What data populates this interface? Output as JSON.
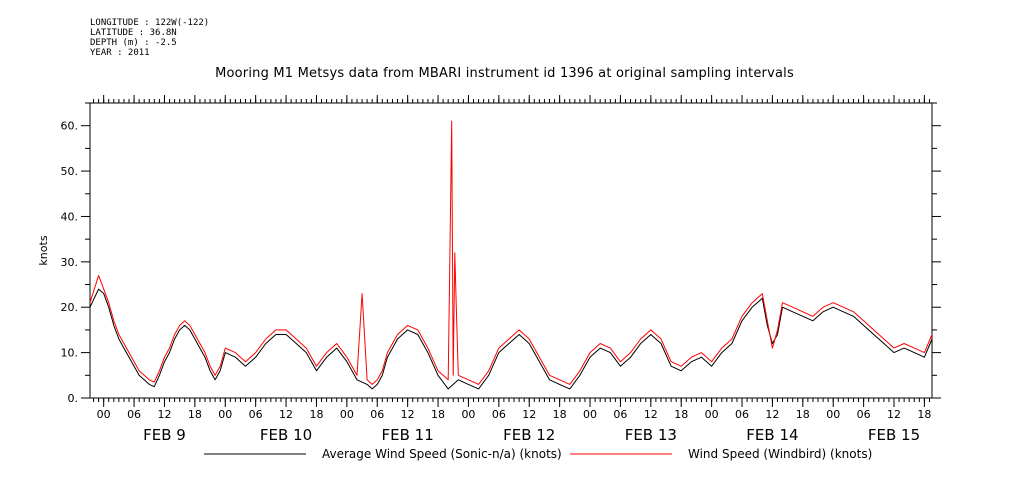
{
  "meta": {
    "longitude": "LONGITUDE : 122W(-122)",
    "latitude": "LATITUDE : 36.8N",
    "depth": "DEPTH (m) : -2.5",
    "year": "YEAR : 2011"
  },
  "chart_data": {
    "type": "line",
    "title": "Mooring M1 Metsys data from MBARI instrument id 1396 at original sampling intervals",
    "ylabel": "knots",
    "xlabel": "",
    "ylim": [
      0,
      65
    ],
    "yticks": [
      0,
      10,
      20,
      30,
      40,
      50,
      60
    ],
    "ytick_labels": [
      "0.",
      "10.",
      "20.",
      "30.",
      "40.",
      "50.",
      "60."
    ],
    "xlim": [
      -2.7,
      163.5
    ],
    "x_unit": "hours from FEB 9 00:00 (2011)",
    "hour_ticks": [
      "00",
      "06",
      "12",
      "18",
      "00",
      "06",
      "12",
      "18",
      "00",
      "06",
      "12",
      "18",
      "00",
      "06",
      "12",
      "18",
      "00",
      "06",
      "12",
      "18",
      "00",
      "06",
      "12",
      "18",
      "00",
      "06",
      "12",
      "18"
    ],
    "hour_tick_positions": [
      0,
      6,
      12,
      18,
      24,
      30,
      36,
      42,
      48,
      54,
      60,
      66,
      72,
      78,
      84,
      90,
      96,
      102,
      108,
      114,
      120,
      126,
      132,
      138,
      144,
      150,
      156,
      162
    ],
    "day_labels": [
      "FEB  9",
      "FEB 10",
      "FEB 11",
      "FEB 12",
      "FEB 13",
      "FEB 14",
      "FEB 15"
    ],
    "day_label_positions": [
      12,
      36,
      60,
      84,
      108,
      132,
      156
    ],
    "grid": false,
    "legend_position": "bottom",
    "series": [
      {
        "name": "Average Wind Speed (Sonic-n/a) (knots)",
        "color": "#000000",
        "x": [
          -2.7,
          -1,
          0,
          1,
          2,
          3,
          4,
          5,
          6,
          7,
          8,
          9,
          10,
          11,
          12,
          13,
          14,
          15,
          16,
          17,
          18,
          19,
          20,
          21,
          22,
          23,
          24,
          26,
          28,
          30,
          32,
          34,
          36,
          38,
          40,
          42,
          44,
          46,
          48,
          50,
          52,
          53,
          54,
          55,
          56,
          57,
          58,
          60,
          62,
          64,
          66,
          68,
          70,
          72,
          74,
          76,
          78,
          80,
          82,
          84,
          86,
          88,
          90,
          92,
          94,
          96,
          98,
          100,
          102,
          104,
          106,
          108,
          110,
          112,
          114,
          116,
          118,
          120,
          122,
          124,
          126,
          128,
          130,
          131,
          132,
          133,
          134,
          136,
          138,
          140,
          142,
          144,
          146,
          148,
          150,
          152,
          154,
          156,
          158,
          160,
          162,
          163.5
        ],
        "y": [
          20,
          24,
          23,
          20,
          16,
          13,
          11,
          9,
          7,
          5,
          4,
          3,
          2.5,
          5,
          8,
          10,
          13,
          15,
          16,
          15,
          13,
          11,
          9,
          6,
          4,
          6,
          10,
          9,
          7,
          9,
          12,
          14,
          14,
          12,
          10,
          6,
          9,
          11,
          8,
          4,
          3,
          2,
          3,
          5,
          9,
          11,
          13,
          15,
          14,
          10,
          5,
          2,
          4,
          3,
          2,
          5,
          10,
          12,
          14,
          12,
          8,
          4,
          3,
          2,
          5,
          9,
          11,
          10,
          7,
          9,
          12,
          14,
          12,
          7,
          6,
          8,
          9,
          7,
          10,
          12,
          17,
          20,
          22,
          16,
          12,
          14,
          20,
          19,
          18,
          17,
          19,
          20,
          19,
          18,
          16,
          14,
          12,
          10,
          11,
          10,
          9,
          13
        ]
      },
      {
        "name": "Wind Speed (Windbird) (knots)",
        "color": "#ff0000",
        "x": [
          -2.7,
          -1,
          0,
          1,
          2,
          3,
          4,
          5,
          6,
          7,
          8,
          9,
          10,
          11,
          12,
          13,
          14,
          15,
          16,
          17,
          18,
          19,
          20,
          21,
          22,
          23,
          24,
          26,
          28,
          30,
          32,
          34,
          36,
          38,
          40,
          42,
          44,
          46,
          48,
          50,
          51,
          52,
          53,
          54,
          55,
          56,
          57,
          58,
          60,
          62,
          64,
          66,
          68,
          68.7,
          69,
          69.3,
          69.6,
          70,
          72,
          74,
          76,
          78,
          80,
          82,
          84,
          86,
          88,
          90,
          92,
          94,
          96,
          98,
          100,
          102,
          104,
          106,
          108,
          110,
          112,
          114,
          116,
          118,
          120,
          122,
          124,
          126,
          128,
          130,
          131,
          132,
          133,
          134,
          136,
          138,
          140,
          142,
          144,
          146,
          148,
          150,
          152,
          154,
          156,
          158,
          160,
          162,
          163.5
        ],
        "y": [
          21,
          27,
          24,
          21,
          17,
          14,
          12,
          10,
          8,
          6,
          5,
          4,
          3.5,
          6,
          9,
          11,
          14,
          16,
          17,
          16,
          14,
          12,
          10,
          7,
          5,
          7,
          11,
          10,
          8,
          10,
          13,
          15,
          15,
          13,
          11,
          7,
          10,
          12,
          9,
          5,
          23,
          4,
          3,
          4,
          6,
          10,
          12,
          14,
          16,
          15,
          11,
          6,
          4,
          61,
          5,
          32,
          20,
          5,
          4,
          3,
          6,
          11,
          13,
          15,
          13,
          9,
          5,
          4,
          3,
          6,
          10,
          12,
          11,
          8,
          10,
          13,
          15,
          13,
          8,
          7,
          9,
          10,
          8,
          11,
          13,
          18,
          21,
          23,
          17,
          11,
          15,
          21,
          20,
          19,
          18,
          20,
          21,
          20,
          19,
          17,
          15,
          13,
          11,
          12,
          11,
          10,
          14
        ]
      }
    ]
  }
}
